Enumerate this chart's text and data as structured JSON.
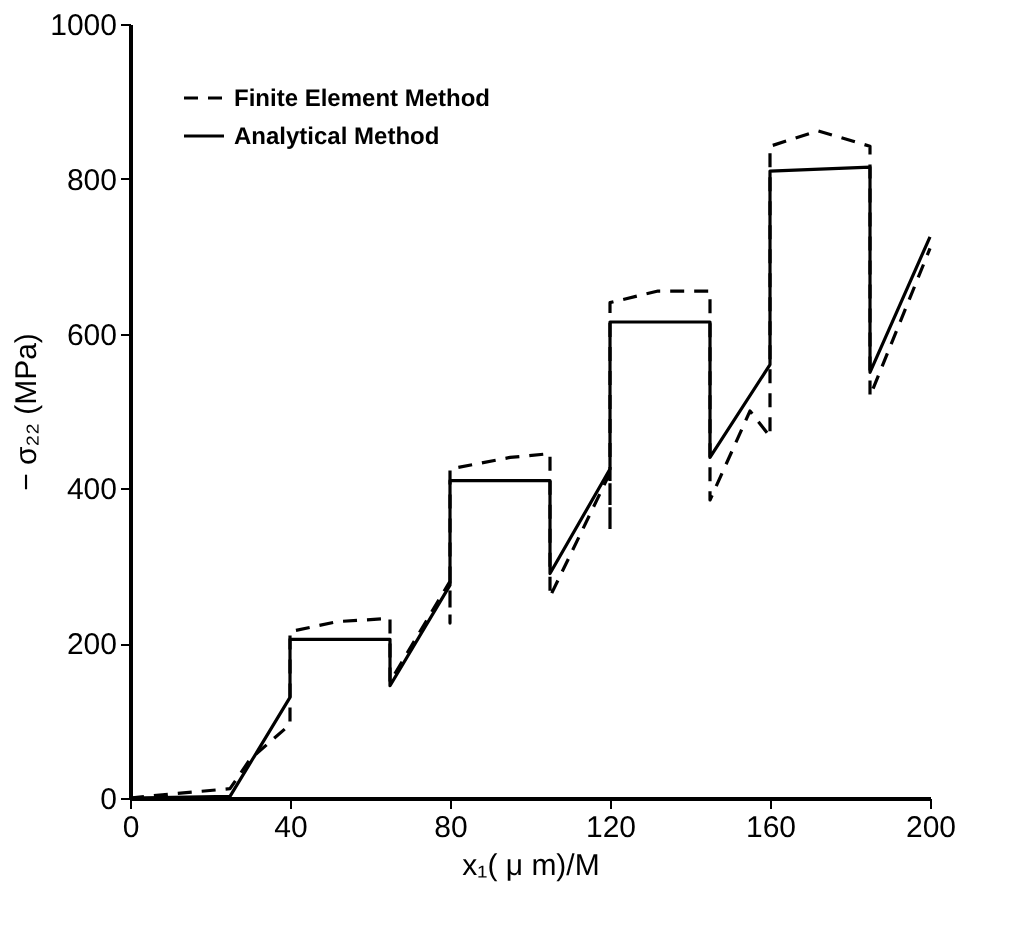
{
  "chart_data": {
    "type": "line",
    "xlabel": "x₁( μ m)/M",
    "ylabel": "− σ₂₂ (MPa)",
    "xlim": [
      0,
      200
    ],
    "xticks": [
      0,
      40,
      80,
      120,
      160,
      200
    ],
    "ylim": [
      0,
      1000
    ],
    "yticks": [
      0,
      200,
      400,
      600,
      800,
      1000
    ],
    "grid": false,
    "legend": "top left",
    "marker": "none",
    "series": [
      {
        "name": "Finite Element Method",
        "color": "#000000",
        "line_style": "dashed",
        "x": [
          0,
          10,
          25,
          30,
          40,
          40,
          52,
          65,
          65,
          80,
          80,
          80,
          95,
          105,
          105,
          120,
          120,
          120,
          132,
          145,
          145,
          155,
          160,
          160,
          172,
          185,
          185,
          200
        ],
        "values": [
          0,
          5,
          12,
          50,
          95,
          215,
          228,
          232,
          150,
          280,
          226,
          425,
          440,
          445,
          260,
          420,
          346,
          640,
          655,
          655,
          385,
          500,
          467,
          842,
          862,
          842,
          519,
          710
        ]
      },
      {
        "name": "Analytical Method",
        "color": "#000000",
        "line_style": "solid",
        "x": [
          0,
          25,
          40,
          40,
          65,
          65,
          80,
          80,
          105,
          105,
          120,
          120,
          145,
          145,
          160,
          160,
          185,
          185,
          200
        ],
        "values": [
          0,
          2,
          130,
          205,
          205,
          145,
          275,
          410,
          410,
          290,
          425,
          615,
          615,
          440,
          560,
          810,
          815,
          550,
          725
        ]
      }
    ]
  }
}
